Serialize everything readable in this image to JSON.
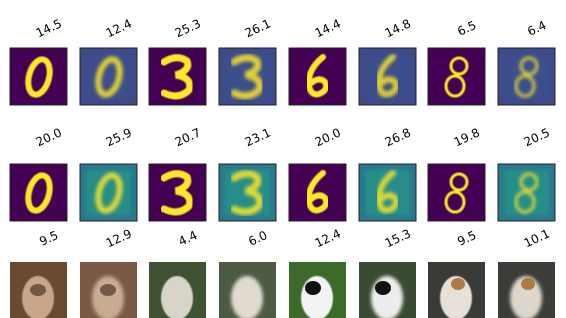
{
  "rows": [
    [
      "14.5",
      "12.4",
      "25.3",
      "26.1",
      "14.4",
      "14.8",
      "6.5",
      "6.4"
    ],
    [
      "20.0",
      "25.9",
      "20.7",
      "23.1",
      "20.0",
      "26.8",
      "19.8",
      "20.5"
    ],
    [
      "9.5",
      "12.9",
      "4.4",
      "6.0",
      "12.4",
      "15.3",
      "9.5",
      "10.1"
    ]
  ]
}
